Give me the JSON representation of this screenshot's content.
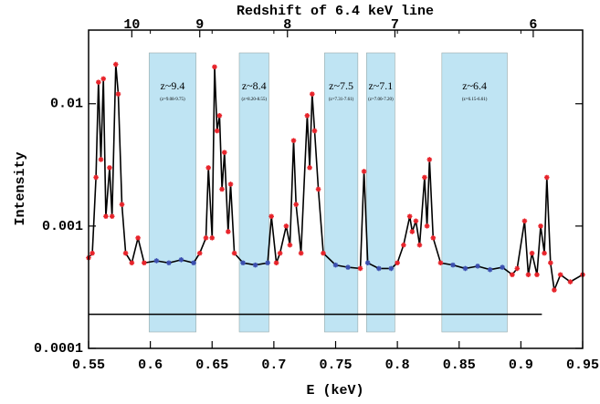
{
  "chart_data": {
    "type": "line",
    "x2_label": "Redshift of 6.4 keV line",
    "x_label": "E (keV)",
    "y_label": "Intensity",
    "xlim": [
      0.55,
      0.95
    ],
    "ylim": [
      0.0001,
      0.04
    ],
    "log_y": true,
    "xticks": [
      0.55,
      0.6,
      0.65,
      0.7,
      0.75,
      0.8,
      0.85,
      0.9,
      0.95
    ],
    "yticks": [
      0.0001,
      0.001,
      0.01
    ],
    "x2ticks": [
      {
        "value": 0.585,
        "label": "10"
      },
      {
        "value": 0.64,
        "label": "9"
      },
      {
        "value": 0.711,
        "label": "8"
      },
      {
        "value": 0.798,
        "label": "7"
      },
      {
        "value": 0.91,
        "label": "6"
      }
    ],
    "band_color": "#bfe4f3",
    "bands": [
      {
        "x0": 0.599,
        "x1": 0.637,
        "label": "z~9.4",
        "range_label": "(z=9.08-9.75)"
      },
      {
        "x0": 0.672,
        "x1": 0.696,
        "label": "z~8.4",
        "range_label": "(z=8.20-8.55)"
      },
      {
        "x0": 0.741,
        "x1": 0.768,
        "label": "z~7.5",
        "range_label": "(z=7.31-7.61)"
      },
      {
        "x0": 0.775,
        "x1": 0.798,
        "label": "z~7.1",
        "range_label": "(z=7.00-7.20)"
      },
      {
        "x0": 0.836,
        "x1": 0.889,
        "label": "z~6.4",
        "range_label": "(z=6.15-6.61)"
      }
    ],
    "line_color": "#000000",
    "marker_color": "#e8232a",
    "band_marker_color": "#3b4fb0",
    "threshold": {
      "x": [
        0.55,
        0.917
      ],
      "value": 0.00019
    },
    "x": [
      0.55,
      0.553,
      0.556,
      0.558,
      0.56,
      0.562,
      0.564,
      0.567,
      0.569,
      0.572,
      0.574,
      0.577,
      0.58,
      0.585,
      0.59,
      0.595,
      0.605,
      0.615,
      0.625,
      0.635,
      0.64,
      0.645,
      0.647,
      0.65,
      0.652,
      0.654,
      0.656,
      0.658,
      0.66,
      0.663,
      0.665,
      0.668,
      0.675,
      0.685,
      0.695,
      0.698,
      0.702,
      0.705,
      0.71,
      0.713,
      0.716,
      0.718,
      0.722,
      0.727,
      0.729,
      0.731,
      0.733,
      0.736,
      0.74,
      0.75,
      0.76,
      0.77,
      0.773,
      0.776,
      0.785,
      0.795,
      0.8,
      0.805,
      0.81,
      0.812,
      0.815,
      0.818,
      0.822,
      0.824,
      0.826,
      0.829,
      0.835,
      0.845,
      0.855,
      0.865,
      0.875,
      0.885,
      0.893,
      0.897,
      0.903,
      0.906,
      0.909,
      0.913,
      0.916,
      0.919,
      0.921,
      0.924,
      0.927,
      0.932,
      0.94,
      0.95
    ],
    "values": [
      0.00055,
      0.0006,
      0.0025,
      0.015,
      0.0035,
      0.016,
      0.0012,
      0.003,
      0.0012,
      0.021,
      0.012,
      0.0015,
      0.0006,
      0.0005,
      0.0008,
      0.0005,
      0.00052,
      0.0005,
      0.00053,
      0.0005,
      0.0006,
      0.0008,
      0.003,
      0.0008,
      0.02,
      0.006,
      0.008,
      0.002,
      0.004,
      0.0009,
      0.0022,
      0.0006,
      0.0005,
      0.00048,
      0.0005,
      0.0012,
      0.0005,
      0.0006,
      0.001,
      0.0007,
      0.005,
      0.0015,
      0.0006,
      0.008,
      0.003,
      0.012,
      0.006,
      0.002,
      0.0006,
      0.00048,
      0.00046,
      0.00045,
      0.0028,
      0.0005,
      0.00045,
      0.00045,
      0.0005,
      0.0007,
      0.0012,
      0.0009,
      0.0011,
      0.0007,
      0.0025,
      0.001,
      0.0035,
      0.0008,
      0.0005,
      0.00048,
      0.00045,
      0.00047,
      0.00044,
      0.00046,
      0.0004,
      0.00045,
      0.0011,
      0.0004,
      0.0006,
      0.0004,
      0.001,
      0.0006,
      0.0025,
      0.0005,
      0.0003,
      0.0004,
      0.00035,
      0.0004
    ]
  }
}
